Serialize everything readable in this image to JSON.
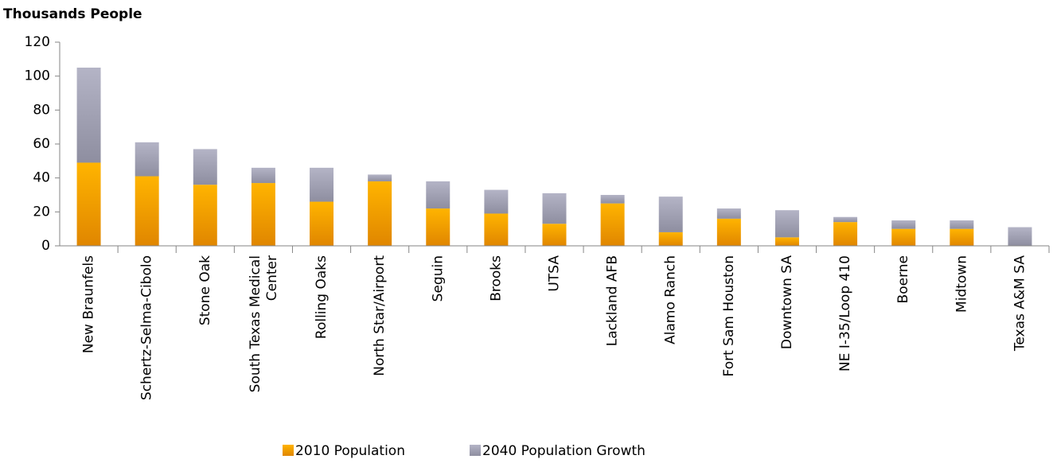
{
  "chart_data": {
    "type": "stacked_bar",
    "title": "Thousands People",
    "categories": [
      "New Braunfels",
      "Schertz-Selma-Cibolo",
      "Stone Oak",
      "South Texas Medical Center",
      "Rolling Oaks",
      "North Star/Airport",
      "Seguin",
      "Brooks",
      "UTSA",
      "Lackland AFB",
      "Alamo Ranch",
      "Fort Sam Houston",
      "Downtown SA",
      "NE I-35/Loop 410",
      "Boerne",
      "Midtown",
      "Texas A&M SA"
    ],
    "series": [
      {
        "name": "2010 Population",
        "color": "#f5a000",
        "values": [
          49,
          41,
          36,
          37,
          26,
          38,
          22,
          19,
          13,
          25,
          8,
          16,
          5,
          14,
          10,
          10,
          0
        ]
      },
      {
        "name": "2040 Population Growth",
        "color": "#a8a8b8",
        "values": [
          56,
          20,
          21,
          9,
          20,
          4,
          16,
          14,
          18,
          5,
          21,
          6,
          16,
          3,
          5,
          5,
          11
        ]
      }
    ],
    "ylim": [
      0,
      120
    ],
    "yticks": [
      0,
      20,
      40,
      60,
      80,
      100,
      120
    ],
    "grid": false,
    "legend": "bottom"
  }
}
